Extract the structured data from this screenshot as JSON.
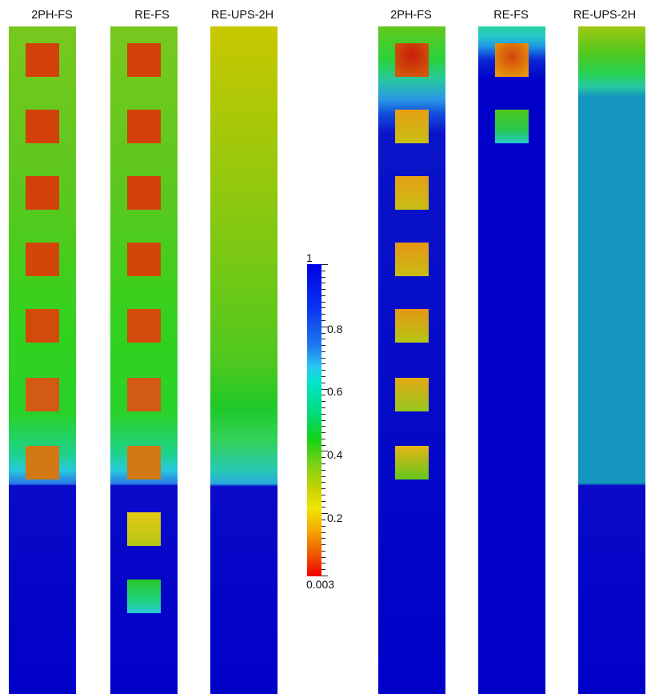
{
  "panels": {
    "left": {
      "titles": [
        "2PH-FS",
        "RE-FS",
        "RE-UPS-2H"
      ]
    },
    "right": {
      "titles": [
        "2PH-FS",
        "RE-FS",
        "RE-UPS-2H"
      ]
    }
  },
  "colorbar": {
    "max_label": "1",
    "min_label": "0.003",
    "tick_labels": [
      "0.8",
      "0.6",
      "0.4",
      "0.2"
    ],
    "range": [
      0.003,
      1
    ],
    "colors": {
      "high": "#0000e6",
      "mid_high": "#28c8f0",
      "mid": "#14d214",
      "mid_low": "#f0e600",
      "low": "#f00000"
    }
  }
}
